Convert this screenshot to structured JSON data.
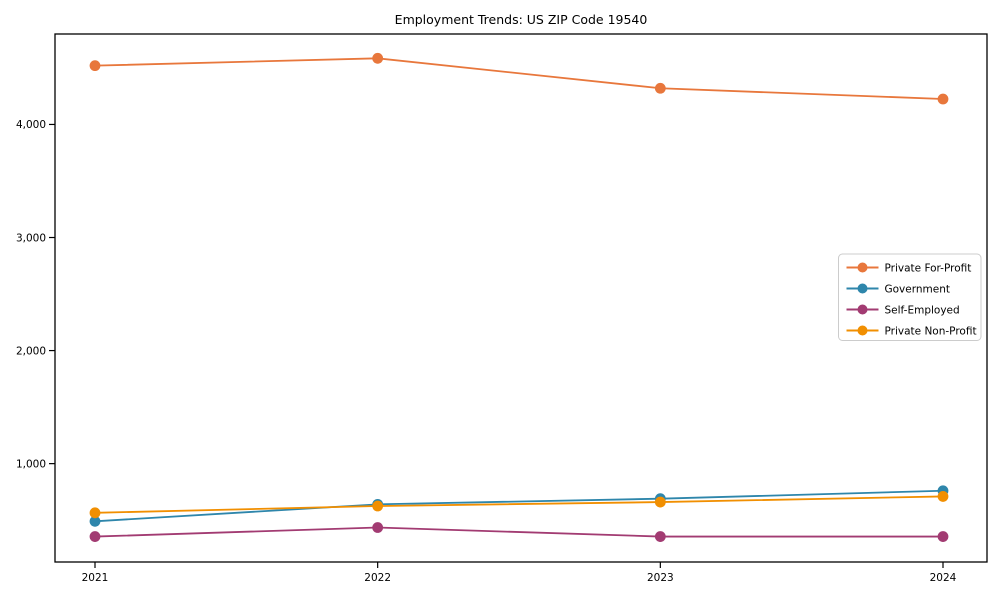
{
  "page": {
    "background_color": "#ffffff"
  },
  "chart_data": {
    "type": "line",
    "title": "Employment Trends: US ZIP Code 19540",
    "xlabel": "",
    "ylabel": "",
    "categories": [
      "2021",
      "2022",
      "2023",
      "2024"
    ],
    "series": [
      {
        "name": "Private For-Profit",
        "color": "#E8773C",
        "values": [
          4520,
          4585,
          4320,
          4225
        ]
      },
      {
        "name": "Government",
        "color": "#2E86AB",
        "values": [
          490,
          640,
          690,
          760
        ]
      },
      {
        "name": "Self-Employed",
        "color": "#A23B72",
        "values": [
          355,
          435,
          355,
          355
        ]
      },
      {
        "name": "Private Non-Profit",
        "color": "#F18F01",
        "values": [
          565,
          625,
          660,
          710
        ]
      }
    ],
    "yticks": [
      1000,
      2000,
      3000,
      4000
    ],
    "ytick_labels": [
      "1,000",
      "2,000",
      "3,000",
      "4,000"
    ],
    "ylim": [
      130,
      4800
    ],
    "grid": false,
    "marker": "circle",
    "legend_position": "center-right",
    "frame_color": "#000000",
    "text_color": "#000000",
    "legend_border_color": "#cccccc",
    "legend_background": "#ffffff"
  }
}
